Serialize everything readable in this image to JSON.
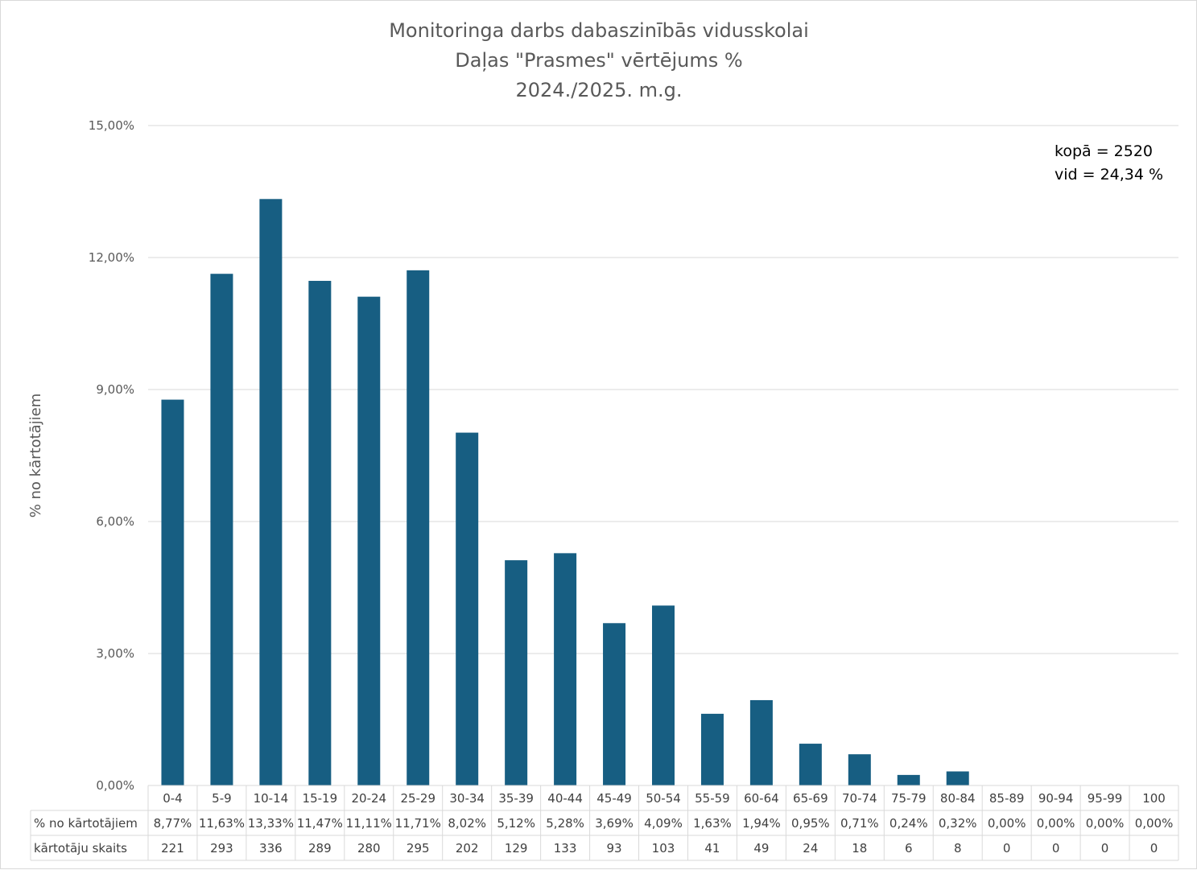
{
  "chart_data": {
    "type": "bar",
    "title": [
      "Monitoringa darbs dabaszinībās vidusskolai",
      "Daļas \"Prasmes\" vērtējums %",
      "2024./2025. m.g."
    ],
    "ylabel": "% no kārtotājiem",
    "ylim": [
      0,
      15
    ],
    "yticks": [
      "0,00%",
      "3,00%",
      "6,00%",
      "9,00%",
      "12,00%",
      "15,00%"
    ],
    "ytick_values": [
      0,
      3,
      6,
      9,
      12,
      15
    ],
    "grid": true,
    "bar_color": "#175e82",
    "categories": [
      "0-4",
      "5-9",
      "10-14",
      "15-19",
      "20-24",
      "25-29",
      "30-34",
      "35-39",
      "40-44",
      "45-49",
      "50-54",
      "55-59",
      "60-64",
      "65-69",
      "70-74",
      "75-79",
      "80-84",
      "85-89",
      "90-94",
      "95-99",
      "100"
    ],
    "values": [
      8.77,
      11.63,
      13.33,
      11.47,
      11.11,
      11.71,
      8.02,
      5.12,
      5.28,
      3.69,
      4.09,
      1.63,
      1.94,
      0.95,
      0.71,
      0.24,
      0.32,
      0.0,
      0.0,
      0.0,
      0.0
    ],
    "table": {
      "rows": [
        {
          "label": "% no kārtotājiem",
          "cells": [
            "8,77%",
            "11,63%",
            "13,33%",
            "11,47%",
            "11,11%",
            "11,71%",
            "8,02%",
            "5,12%",
            "5,28%",
            "3,69%",
            "4,09%",
            "1,63%",
            "1,94%",
            "0,95%",
            "0,71%",
            "0,24%",
            "0,32%",
            "0,00%",
            "0,00%",
            "0,00%",
            "0,00%"
          ]
        },
        {
          "label": "kārtotāju skaits",
          "cells": [
            "221",
            "293",
            "336",
            "289",
            "280",
            "295",
            "202",
            "129",
            "133",
            "93",
            "103",
            "41",
            "49",
            "24",
            "18",
            "6",
            "8",
            "0",
            "0",
            "0",
            "0"
          ]
        }
      ]
    },
    "annotations": [
      "kopā = 2520",
      "vid = 24,34 %"
    ]
  }
}
